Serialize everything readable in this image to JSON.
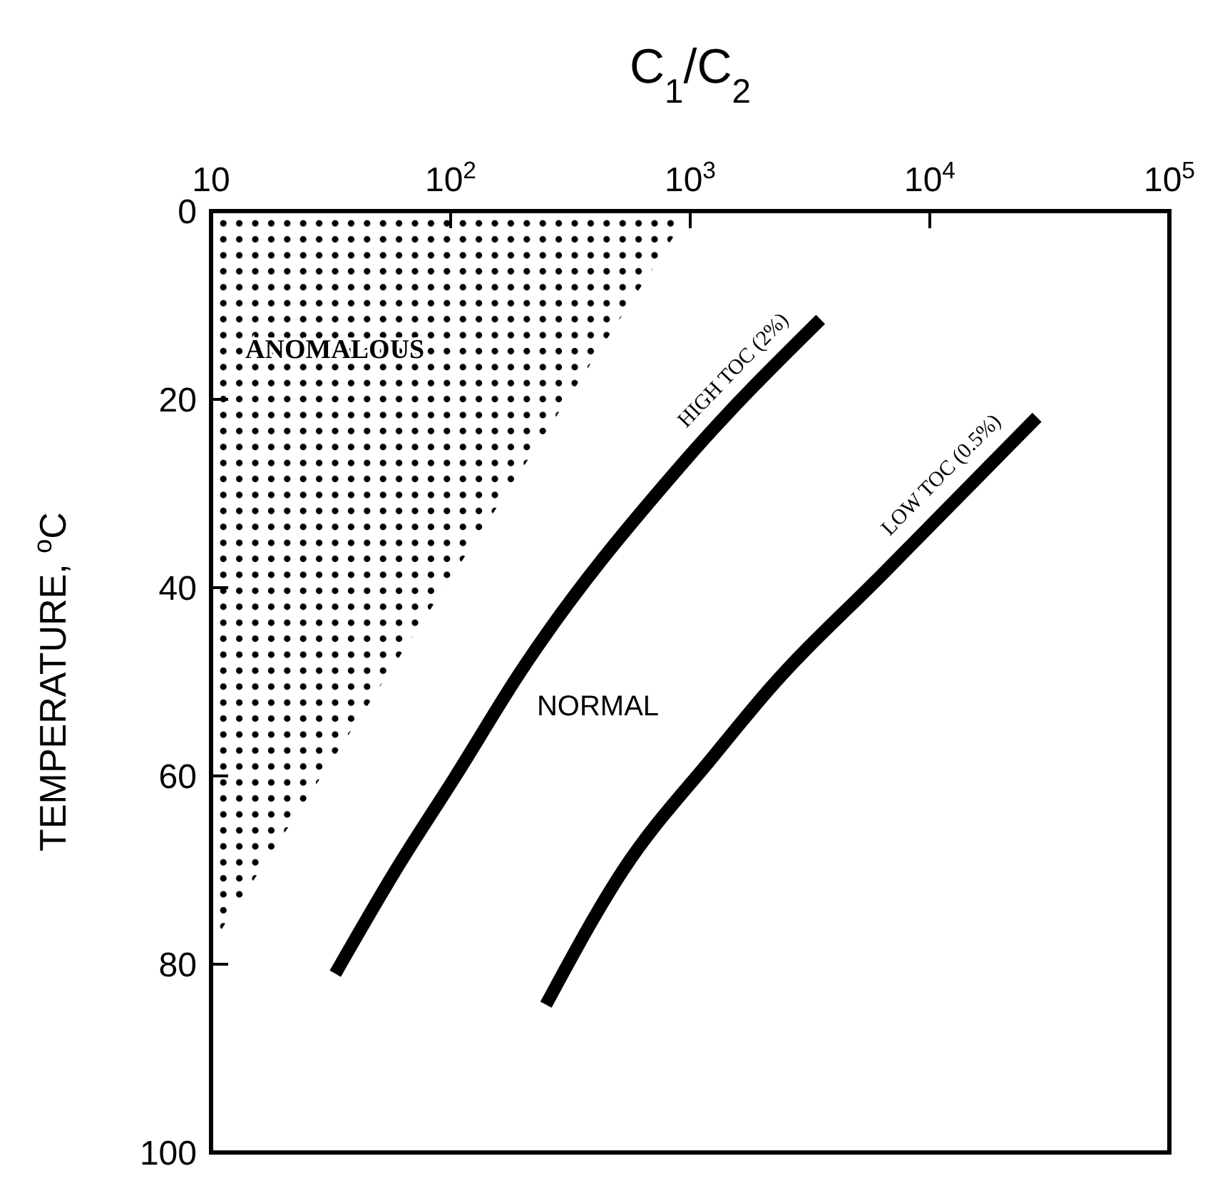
{
  "chart_data": {
    "type": "line",
    "xlabel": "C$_{1}$/C$_{2}$",
    "ylabel": "TEMPERATURE, $^{o}$C",
    "log": "x",
    "xlim": [
      10,
      100000
    ],
    "xticks": [
      10,
      {
        "value": 100,
        "label": "10$^{2}$"
      },
      {
        "value": 1000,
        "label": "10$^{3}$"
      },
      {
        "value": 10000,
        "label": "10$^{4}$"
      },
      {
        "value": 100000,
        "label": "10$^{5}$"
      }
    ],
    "ylim": [
      100,
      0
    ],
    "yticks": [
      0,
      20,
      40,
      60,
      80,
      100
    ],
    "series": [
      {
        "name": "ANOMALOUS",
        "type": "area",
        "color": "#000000",
        "x": [
          10,
          1000
        ],
        "values": [
          78,
          0
        ]
      },
      {
        "name": "HIGH TOC (2%)",
        "color": "#000000",
        "x": [
          33,
          59,
          105,
          195,
          960,
          3500
        ],
        "values": [
          81,
          70,
          60,
          49,
          26.4,
          11.5
        ]
      },
      {
        "name": "LOW TOC (0.5%)",
        "color": "#000000",
        "x": [
          250,
          525,
          1260,
          2150,
          6500,
          28000
        ],
        "values": [
          84.3,
          70,
          57.8,
          50.7,
          38.3,
          21.9
        ]
      }
    ],
    "annotations": [
      "NORMAL"
    ]
  }
}
